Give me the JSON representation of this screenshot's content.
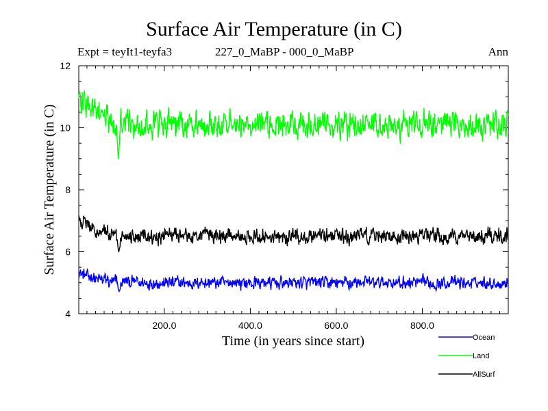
{
  "chart_data": {
    "type": "line",
    "title": "Surface Air Temperature (in C)",
    "subtitle_left": "Expt = teyIt1-teyfa3",
    "subtitle_center": "227_0_MaBP - 000_0_MaBP",
    "subtitle_right": "Ann",
    "xlabel": "Time (in years since start)",
    "ylabel": "Surface Air Temperature (in C)",
    "xlim": [
      1,
      1000
    ],
    "ylim": [
      4,
      12
    ],
    "xticks": [
      200,
      400,
      600,
      800
    ],
    "xtick_labels": [
      "200.0",
      "400.0",
      "600.0",
      "800.0"
    ],
    "yticks": [
      4,
      6,
      8,
      10,
      12
    ],
    "ytick_labels": [
      "4",
      "6",
      "8",
      "10",
      "12"
    ],
    "grid": false,
    "legend_position": "bottom-right",
    "series": [
      {
        "name": "Ocean",
        "color": "#0000ff",
        "base": 5.0,
        "start": 5.35,
        "noise": 0.16,
        "dip_year": 95,
        "dip_value": 4.7
      },
      {
        "name": "Land",
        "color": "#00ff00",
        "base": 10.1,
        "start": 11.0,
        "noise": 0.35,
        "dip_year": 93,
        "dip_value": 8.95
      },
      {
        "name": "AllSurf",
        "color": "#000000",
        "base": 6.5,
        "start": 7.05,
        "noise": 0.2,
        "dip_year": 94,
        "dip_value": 5.95
      }
    ]
  }
}
